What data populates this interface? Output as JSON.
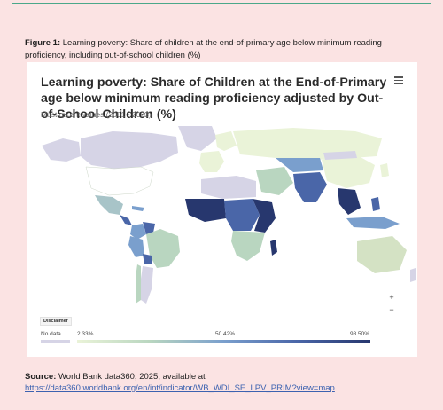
{
  "figure": {
    "caption_prefix": "Figure 1:",
    "caption_text": " Learning poverty: Share of children at the end-of-primary age below minimum reading proficiency, including out-of-school children (%)"
  },
  "map": {
    "title": "Learning poverty: Share of Children at the End-of-Primary age below minimum reading proficiency adjusted by Out-of-School Children (%)",
    "subtitle": "Most recent values (2001 - 2023)",
    "disclaimer_label": "Disclaimer",
    "zoom_in_label": "+",
    "zoom_out_label": "−",
    "menu_icon": "hamburger-menu-icon",
    "colors": {
      "no_data": "#d6d4e6",
      "low": "#eaf3d8",
      "mid": "#7a9fcd",
      "high": "#27376e"
    }
  },
  "legend": {
    "no_data_label": "No data",
    "min_label": "2.33%",
    "mid_label": "50.42%",
    "max_label": "98.50%"
  },
  "source": {
    "prefix": "Source:",
    "text": " World Bank data360, 2025, available at ",
    "link": "https://data360.worldbank.org/en/int/indicator/WB_WDI_SE_LPV_PRIM?view=map"
  }
}
